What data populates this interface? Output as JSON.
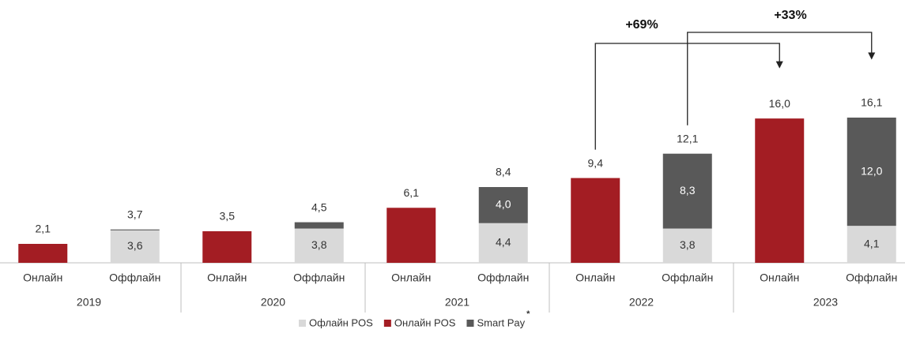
{
  "chart_data": {
    "type": "stacked_bar",
    "categories": [
      "Онлайн",
      "Оффлайн",
      "Онлайн",
      "Оффлайн",
      "Онлайн",
      "Оффлайн",
      "Онлайн",
      "Оффлайн",
      "Онлайн",
      "Оффлайн"
    ],
    "groups": [
      "2019",
      "2020",
      "2021",
      "2022",
      "2023"
    ],
    "series": [
      {
        "name": "Офлайн POS",
        "color": "#d9d9d9",
        "values": [
          null,
          3.6,
          null,
          3.8,
          null,
          4.4,
          null,
          3.8,
          null,
          4.1
        ],
        "value_labels": [
          null,
          "3,6",
          null,
          "3,8",
          null,
          "4,4",
          null,
          "3,8",
          null,
          "4,1"
        ]
      },
      {
        "name": "Онлайн POS",
        "color": "#a31d23",
        "values": [
          2.1,
          null,
          3.5,
          null,
          6.1,
          null,
          9.4,
          null,
          16.0,
          null
        ],
        "value_labels": [
          "2,1",
          null,
          "3,5",
          null,
          "6,1",
          null,
          "9,4",
          null,
          "16,0",
          null
        ]
      },
      {
        "name": "Smart Pay",
        "color": "#595959",
        "values": [
          null,
          0.1,
          null,
          0.7,
          null,
          4.0,
          null,
          8.3,
          null,
          12.0
        ],
        "value_labels": [
          null,
          null,
          null,
          null,
          null,
          "4,0",
          null,
          "8,3",
          null,
          "12,0"
        ]
      }
    ],
    "totals": [
      null,
      3.7,
      null,
      4.5,
      null,
      8.4,
      null,
      12.1,
      null,
      16.1
    ],
    "total_labels": [
      null,
      "3,7",
      null,
      "4,5",
      null,
      "8,4",
      null,
      "12,1",
      null,
      "16,1"
    ],
    "annotations": [
      "+69%",
      "+33%"
    ],
    "footnote_marker": "*",
    "ylim": [
      0,
      16.1
    ],
    "legend": "bottom"
  }
}
